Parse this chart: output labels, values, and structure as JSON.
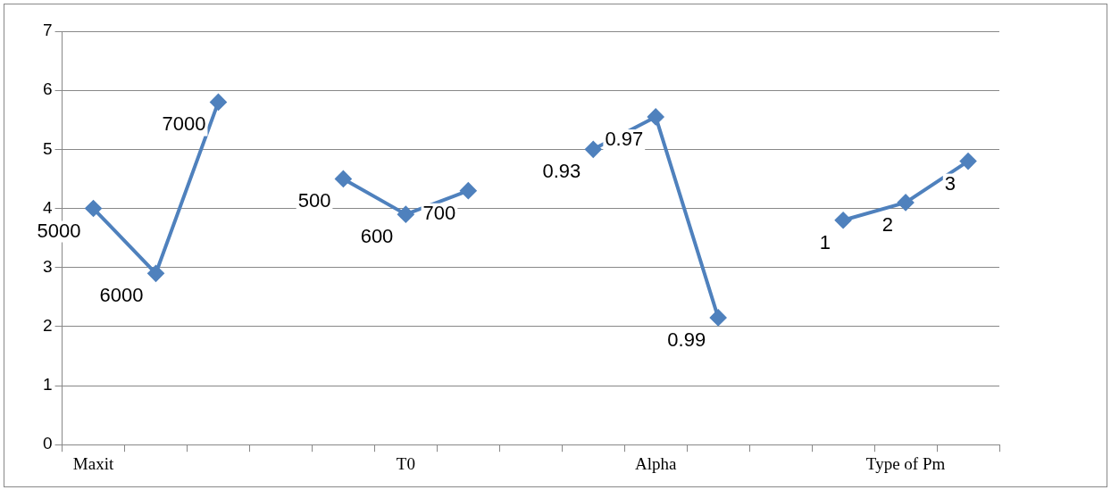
{
  "chart_data": {
    "type": "line",
    "categories": [
      "Maxit",
      null,
      null,
      null,
      null,
      "T0",
      null,
      null,
      null,
      "Alpha",
      null,
      null,
      null,
      "Type of Pm",
      null
    ],
    "series": [
      {
        "color": "#4f81bd",
        "values": [
          4.0,
          2.9,
          5.8,
          null,
          4.5,
          3.9,
          4.3,
          null,
          5.0,
          5.55,
          2.15,
          null,
          3.8,
          4.1,
          4.8
        ]
      }
    ],
    "annotations": [
      "5000",
      "6000",
      "7000",
      "500",
      "600",
      "700",
      "0.93",
      "0.97",
      "0.99",
      "1",
      "2",
      "3"
    ],
    "ylim": [
      0,
      7
    ],
    "yticks": [
      0,
      1,
      2,
      3,
      4,
      5,
      6,
      7
    ],
    "grid": "y",
    "legend": false,
    "marker": "diamond",
    "line_style": "solid"
  }
}
